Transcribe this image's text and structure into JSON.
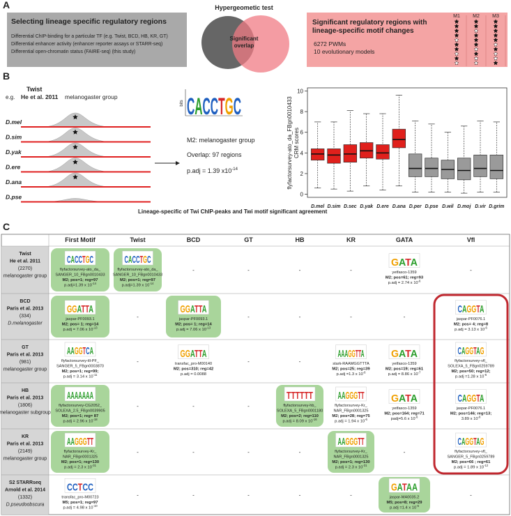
{
  "panel_labels": [
    "A",
    "B",
    "C"
  ],
  "panel_a": {
    "left_title": "Selecting lineage specific regulatory regions",
    "left_lines": [
      "Differential  ChIP-binding for a particular TF (e.g. Twist, BCD, HB, KR, GT)",
      "Differential enhancer activity (enhancer reporter assays or STARR-seq)",
      "Differential open-chromatin status (FAIRE-seq) (this study)"
    ],
    "venn_title": "Hypergeometic test",
    "venn_overlap": [
      "Significant",
      "overlap"
    ],
    "right_title": [
      "Significant regulatory regions with",
      "lineage-specific motif changes"
    ],
    "right_lines": [
      "6272 PWMs",
      "10 evolutionary models"
    ],
    "model_labels": [
      "M1",
      "M2",
      "M3"
    ]
  },
  "panel_b": {
    "eg": "e.g.",
    "tf": "Twist",
    "ref": "He et al. 2011",
    "group": "melanogaster group",
    "species": [
      "D.mel",
      "D.sim",
      "D.yak",
      "D.ere",
      "D.ana",
      "D.pse"
    ],
    "logo": "CACCTGC",
    "logo_axis": "bits",
    "result": [
      "M2: melanogaster group",
      "Overlap: 97 regions"
    ],
    "padj": "p.adj = 1.39 x10",
    "padj_exp": "-14",
    "caption": "Lineage-specific of Twi ChIP-peaks and Twi motif significant agreement",
    "boxplot": {
      "type": "box",
      "ylabel": [
        "flyfactorsurvey-ato_da_FBgn0010433",
        "CRM scores"
      ],
      "categories": [
        "D.mel",
        "D.sim",
        "D.sec",
        "D.yak",
        "D.ere",
        "D.ana",
        "D.per",
        "D.pse",
        "D.wil",
        "D.moj",
        "D.vir",
        "D.grim"
      ],
      "boxes": [
        {
          "min": 0.6,
          "q1": 3.3,
          "median": 3.9,
          "q3": 4.4,
          "max": 7.0
        },
        {
          "min": 0.5,
          "q1": 3.0,
          "median": 3.8,
          "q3": 4.4,
          "max": 7.0
        },
        {
          "min": 0.3,
          "q1": 3.1,
          "median": 3.9,
          "q3": 4.8,
          "max": 8.1
        },
        {
          "min": 0.8,
          "q1": 3.5,
          "median": 4.2,
          "q3": 5.0,
          "max": 7.8
        },
        {
          "min": 0.4,
          "q1": 3.4,
          "median": 4.0,
          "q3": 4.8,
          "max": 7.8
        },
        {
          "min": 0.8,
          "q1": 4.5,
          "median": 5.3,
          "q3": 6.3,
          "max": 9.6
        },
        {
          "min": 0.2,
          "q1": 1.7,
          "median": 2.5,
          "q3": 3.9,
          "max": 7.1
        },
        {
          "min": 0.2,
          "q1": 1.7,
          "median": 2.5,
          "q3": 3.5,
          "max": 6.8
        },
        {
          "min": 0.2,
          "q1": 1.5,
          "median": 2.4,
          "q3": 3.3,
          "max": 6.0
        },
        {
          "min": 0.1,
          "q1": 1.4,
          "median": 2.3,
          "q3": 3.5,
          "max": 6.6
        },
        {
          "min": 0.2,
          "q1": 1.7,
          "median": 2.5,
          "q3": 3.8,
          "max": 7.1
        },
        {
          "min": 0.2,
          "q1": 1.5,
          "median": 2.3,
          "q3": 3.8,
          "max": 7.0
        }
      ],
      "box_colors": [
        "#e0201c",
        "#e0201c",
        "#e0201c",
        "#e0201c",
        "#e0201c",
        "#e0201c",
        "#9a9a9a",
        "#9a9a9a",
        "#9a9a9a",
        "#9a9a9a",
        "#9a9a9a",
        "#9a9a9a"
      ],
      "ylim": [
        -0.3,
        10.3
      ],
      "yticks": [
        0,
        2,
        4,
        6,
        8,
        10
      ]
    }
  },
  "panel_c": {
    "columns": [
      "First Motif",
      "Twist",
      "BCD",
      "GT",
      "HB",
      "KR",
      "GATA",
      "Vfl"
    ],
    "rows": [
      {
        "label": [
          "Twist",
          "He et al. 2011",
          "(2270)",
          "melanogaster group"
        ],
        "cells": [
          {
            "logo": "CACCTGC",
            "name": [
              "flyfactorsurvey-ato_da_",
              "SANGER_10_FBgn0010433"
            ],
            "stats": "M2; pos=1; reg=97",
            "padj": "p.adj=1.39 x 10",
            "exp": "-14",
            "style": "green"
          },
          {
            "logo": "CACCTGC",
            "name": [
              "flyfactorsurvey-ato_da_",
              "SANGER_10_FBgn0010433"
            ],
            "stats": "M2; pos=1; reg=97",
            "padj": "p.adj=1.39 x 10",
            "exp": "-14",
            "style": "green"
          },
          "-",
          "-",
          "-",
          "-",
          {
            "logo": "GATA",
            "name": [
              "yetfasco-1359"
            ],
            "stats": "M2; pos=61; reg=93",
            "padj": "p.adj = 2.74 x 10",
            "exp": "-6",
            "style": "plain"
          },
          "-"
        ]
      },
      {
        "label": [
          "BCD",
          "Paris et al. 2013",
          "(334)",
          "D.melanogaster"
        ],
        "cells": [
          {
            "logo": "GGATTA",
            "name": [
              "jaspar-PF0093.1"
            ],
            "stats": "M2; pos= 1; reg=14",
            "padj": "p.adj = 7.06 x 10",
            "exp": "-13",
            "style": "green"
          },
          "-",
          {
            "logo": "GGATTA",
            "name": [
              "jaspar-PF0093.1"
            ],
            "stats": "M2; pos= 1; reg=14",
            "padj": "p.adj = 7.06 x 10",
            "exp": "-13",
            "style": "green"
          },
          "-",
          "-",
          "-",
          "-",
          {
            "logo": "CAGGTA",
            "name": [
              "jaspar-PF0076.1"
            ],
            "stats": "M2; pos= 4; reg=8",
            "padj": "p.adj = 3.13 x 10",
            "exp": "-6",
            "style": "red"
          }
        ]
      },
      {
        "label": [
          "GT",
          "Paris et al. 2013",
          "(981)",
          "melanogaster group"
        ],
        "cells": [
          {
            "logo": "AAGGTCA",
            "name": [
              "flyfactorsurvey-tll-PF_",
              "SANGER_5_FBgn0003870"
            ],
            "stats": "M2; pos=1; reg=99;",
            "padj": "p.adj = 3.14 x 10",
            "exp": "-11",
            "style": "plain"
          },
          "-",
          {
            "logo": "GGATTA",
            "name": [
              "transfac_pro-M00140"
            ],
            "stats": "M2; pos=310; reg=42",
            "padj": "p.adj = 0.0088",
            "style": "plain"
          },
          "-",
          "-",
          {
            "logo": "AAAGGTTA",
            "name": [
              "stark-RAAMGGTTTA"
            ],
            "stats": "M2; pos=25; reg=39",
            "padj": "p.adj =1.3 x 10",
            "exp": "-6",
            "style": "plain"
          },
          {
            "logo": "GATA",
            "name": [
              "yetfasco-1359"
            ],
            "stats": "M2; pos=19; reg=61",
            "padj": "p.adj = 8.86 x 10",
            "exp": "-7",
            "style": "plain"
          },
          {
            "logo": "CAGGTAG",
            "name": [
              "flyfactorsurvey-vfl_",
              "SOLEXA_5_FBgn0259789"
            ],
            "stats": "M2; pos=50; reg=12;",
            "padj": "p.adj =1.28 x 10",
            "exp": "-6",
            "style": "red"
          }
        ]
      },
      {
        "label": [
          "HB",
          "Paris et al. 2013",
          "(1806)",
          "melanogaster subgroup"
        ],
        "cells": [
          {
            "logo": "AAAAAAA",
            "name": [
              "flyfactorsurvey-CG2052_",
              "SOLEXA_2.5_FBgn0039905"
            ],
            "stats": "M2; pos=1; reg= 87",
            "padj": "p.adj = 2.96 x 10",
            "exp": "-18",
            "style": "green"
          },
          "-",
          "-",
          "-",
          {
            "logo": "TTTTTT",
            "name": [
              "flyfactorsurvey-hb_",
              "SOLEXA_5_FBgn0001180"
            ],
            "stats": "M2; pos=2; reg=110",
            "padj": "p.adj = 8.09 x 10",
            "exp": "-16",
            "style": "green"
          },
          {
            "logo": "AAGGGTT",
            "name": [
              "flyfactorsurvey-Kr_",
              "NAR_FBgn0001325"
            ],
            "stats": "M2; pos=28; reg=75",
            "padj": "p.adj = 1.94 x 10",
            "exp": "-6",
            "style": "plain"
          },
          {
            "logo": "GATA",
            "name": [
              "yetfasco-1359"
            ],
            "stats": "M2; pos=164; reg=71",
            "padj": "padj=5.6 x 10",
            "exp": "-6",
            "style": "plain"
          },
          {
            "logo": "CAGGTA",
            "name": [
              "jaspar-PF0076.1"
            ],
            "stats": "M2; pos=146; reg=13;",
            "padj": "3.89 x 10",
            "exp": "-6",
            "style": "red"
          }
        ]
      },
      {
        "label": [
          "KR",
          "Paris et al. 2013",
          "(2149)",
          "melanogaster group"
        ],
        "cells": [
          {
            "logo": "AAGGGTT",
            "name": [
              "flyfactorsurvey-Kr_",
              "NAR_FBgn0001325"
            ],
            "stats": "M2; pos=1; reg=130",
            "padj": "p.adj = 2.3 x 10",
            "exp": "-31",
            "style": "green"
          },
          "-",
          "-",
          "-",
          "-",
          {
            "logo": "AAGGGTT",
            "name": [
              "flyfactorsurvey-Kr_",
              "NAR_FBgn0001325"
            ],
            "stats": "M2; pos=1; reg=130",
            "padj": "p.adj = 2.3 x 10",
            "exp": "-31",
            "style": "green"
          },
          "-",
          {
            "logo": "CAGGTAG",
            "name": [
              "flyfactorsurvey-vfl_",
              "SANGER_5_FBgn0259789"
            ],
            "stats": "M2; pos=66 ; reg=61",
            "padj": "p.adj = 1.89 x 10",
            "exp": "-12",
            "style": "red"
          }
        ]
      },
      {
        "label": [
          "S2 STARRseq",
          "Arnold et al. 2014",
          "(1332)",
          "D.pseudoobscura"
        ],
        "cells": [
          {
            "logo": "CCTCC",
            "name": [
              "transfac_pro-M00723"
            ],
            "stats": "M5; pos=1; reg=97",
            "padj": "p.adj = 4.98 x 10",
            "exp": "-10",
            "style": "plain"
          },
          "-",
          "-",
          "-",
          "-",
          "-",
          {
            "logo": "GATAA",
            "name": [
              "jaspar-MA0035.2"
            ],
            "stats": "M5; pos=8; reg=29",
            "padj": "p.adj =1.4 x 10",
            "exp": "-5",
            "style": "green"
          },
          "-"
        ]
      }
    ]
  }
}
